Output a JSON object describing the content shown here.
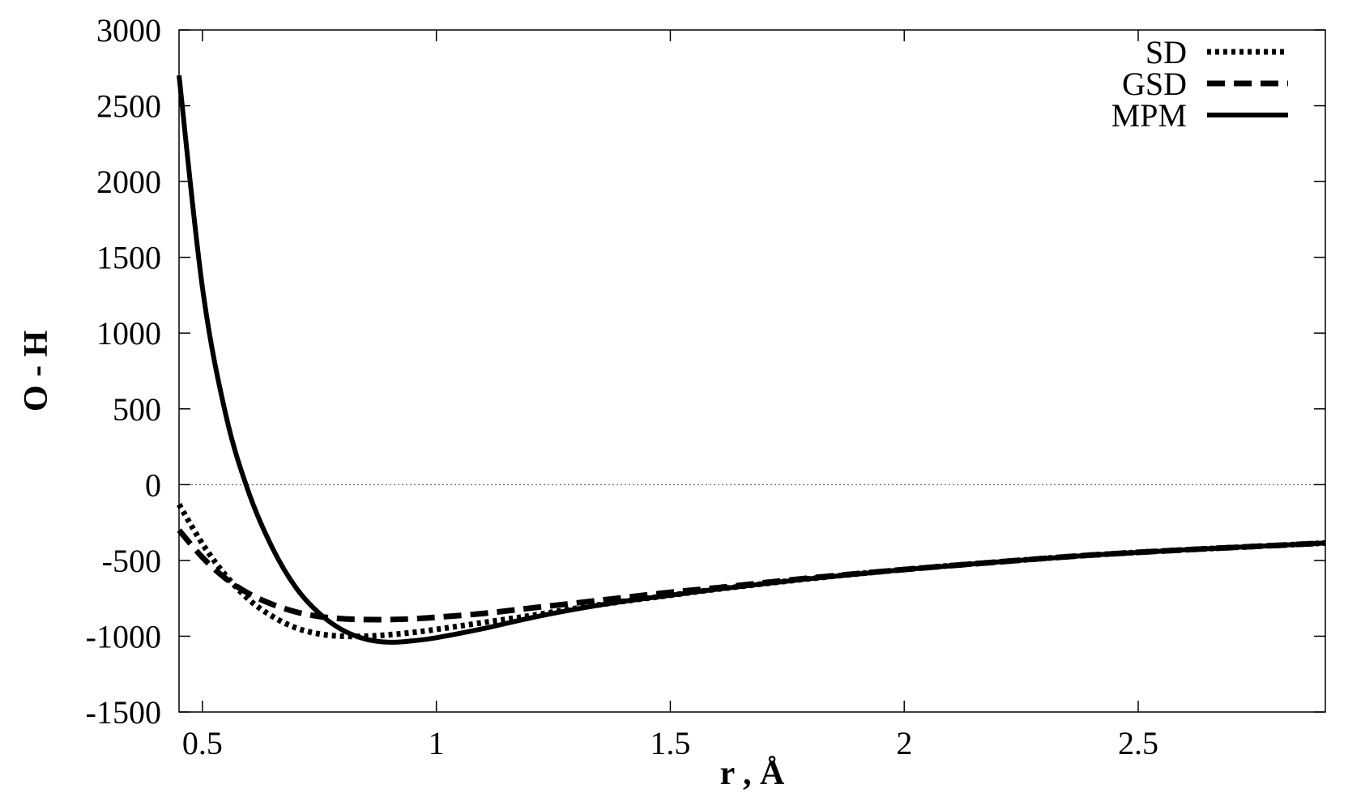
{
  "chart_data": {
    "type": "line",
    "title": "",
    "xlabel": "r , Å",
    "ylabel": "O - H",
    "xlim": [
      0.45,
      2.9
    ],
    "ylim": [
      -1500,
      3000
    ],
    "xticks": [
      0.5,
      1,
      1.5,
      2,
      2.5
    ],
    "xtick_labels": [
      "0.5",
      "1",
      "1.5",
      "2",
      "2.5"
    ],
    "yticks": [
      -1500,
      -1000,
      -500,
      0,
      500,
      1000,
      1500,
      2000,
      2500,
      3000
    ],
    "ytick_labels": [
      "-1500",
      "-1000",
      "-500",
      "0",
      "500",
      "1000",
      "1500",
      "2000",
      "2500",
      "3000"
    ],
    "zero_line": true,
    "grid": false,
    "legend_position": "top-right",
    "colors": {
      "line": "#000000",
      "zero_line": "#555555",
      "frame": "#000000",
      "background": "#ffffff"
    },
    "series": [
      {
        "name": "SD",
        "style": "dotted",
        "x": [
          0.45,
          0.5,
          0.55,
          0.6,
          0.65,
          0.7,
          0.75,
          0.8,
          0.85,
          0.9,
          0.95,
          1.0,
          1.1,
          1.2,
          1.3,
          1.4,
          1.5,
          1.6,
          1.8,
          2.0,
          2.2,
          2.4,
          2.6,
          2.8,
          2.9
        ],
        "y": [
          -130,
          -390,
          -600,
          -760,
          -870,
          -945,
          -985,
          -1000,
          -1000,
          -990,
          -975,
          -955,
          -910,
          -865,
          -815,
          -770,
          -730,
          -690,
          -620,
          -560,
          -510,
          -465,
          -430,
          -400,
          -385
        ]
      },
      {
        "name": "GSD",
        "style": "dashed",
        "x": [
          0.45,
          0.5,
          0.55,
          0.6,
          0.65,
          0.7,
          0.75,
          0.8,
          0.85,
          0.9,
          0.95,
          1.0,
          1.1,
          1.2,
          1.3,
          1.4,
          1.5,
          1.6,
          1.8,
          2.0,
          2.2,
          2.4,
          2.6,
          2.8,
          2.9
        ],
        "y": [
          -300,
          -480,
          -620,
          -720,
          -790,
          -840,
          -870,
          -885,
          -890,
          -890,
          -885,
          -875,
          -850,
          -815,
          -780,
          -745,
          -710,
          -680,
          -615,
          -560,
          -510,
          -465,
          -430,
          -400,
          -385
        ]
      },
      {
        "name": "MPM",
        "style": "solid",
        "x": [
          0.45,
          0.5,
          0.55,
          0.6,
          0.65,
          0.7,
          0.75,
          0.8,
          0.85,
          0.9,
          0.95,
          1.0,
          1.1,
          1.2,
          1.3,
          1.4,
          1.5,
          1.6,
          1.8,
          2.0,
          2.2,
          2.4,
          2.6,
          2.8,
          2.9
        ],
        "y": [
          2700,
          1300,
          460,
          -60,
          -420,
          -680,
          -850,
          -960,
          -1020,
          -1040,
          -1030,
          -1010,
          -950,
          -880,
          -820,
          -770,
          -730,
          -690,
          -620,
          -560,
          -510,
          -465,
          -430,
          -400,
          -385
        ]
      }
    ]
  }
}
